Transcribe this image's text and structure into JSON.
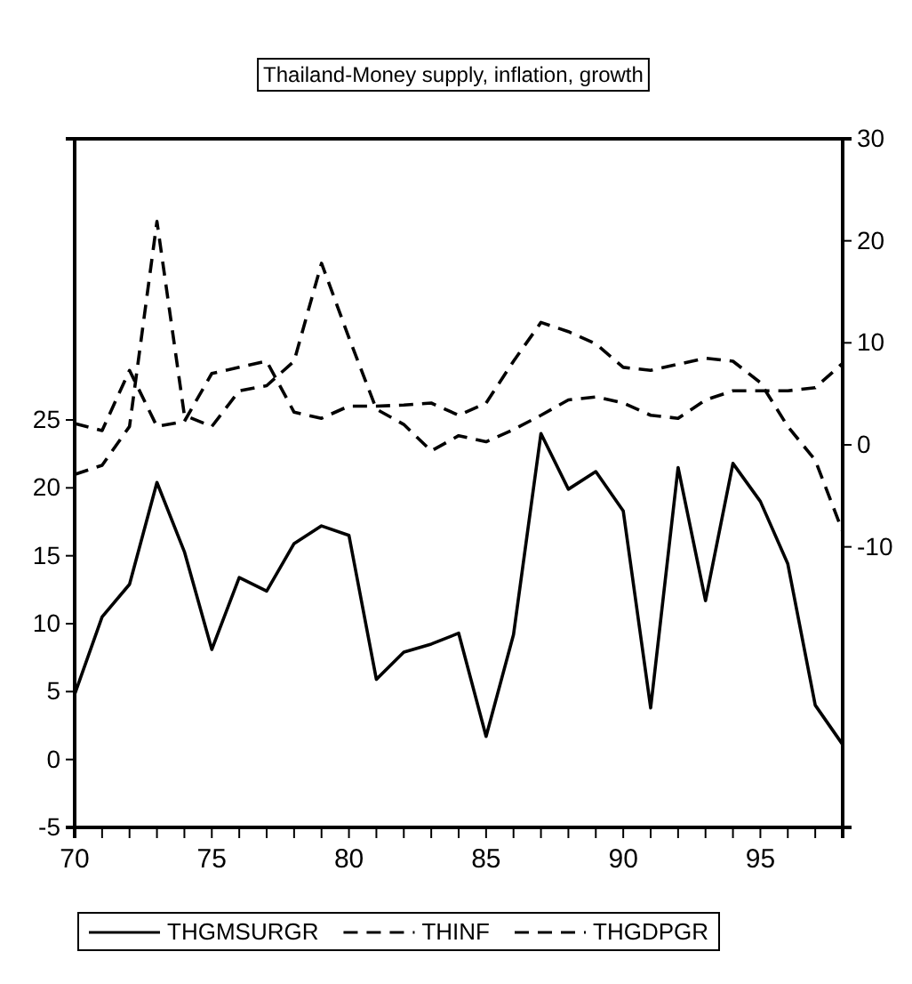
{
  "chart_data": {
    "type": "line",
    "title": "Thailand-Money supply, inflation, growth",
    "x": [
      70,
      71,
      72,
      73,
      74,
      75,
      76,
      77,
      78,
      79,
      80,
      81,
      82,
      83,
      84,
      85,
      86,
      87,
      88,
      89,
      90,
      91,
      92,
      93,
      94,
      95,
      96,
      97,
      98
    ],
    "series": [
      {
        "name": "THGMSURGR",
        "color": "#000000",
        "line_style": "solid",
        "values": [
          4.8,
          10.5,
          12.9,
          20.4,
          15.3,
          8.1,
          13.4,
          12.4,
          15.9,
          17.2,
          16.5,
          5.9,
          7.9,
          8.5,
          9.3,
          1.7,
          9.2,
          24.0,
          19.9,
          21.2,
          18.3,
          3.8,
          21.5,
          11.7,
          21.8,
          19.0,
          14.4,
          4.0,
          1.1
        ]
      },
      {
        "name": "THINF",
        "color": "#000000",
        "line_style": "dashed",
        "axis": "y2",
        "values": [
          -2.9,
          -2.0,
          1.8,
          21.9,
          2.9,
          1.8,
          5.3,
          5.8,
          8.2,
          17.8,
          10.5,
          3.5,
          2.0,
          -0.6,
          0.9,
          0.3,
          1.5,
          2.9,
          4.4,
          4.7,
          4.1,
          2.9,
          2.6,
          4.4,
          5.3,
          5.3,
          5.3,
          5.6,
          8.0
        ]
      },
      {
        "name": "THGDPGR",
        "color": "#000000",
        "line_style": "dashed",
        "axis": "y2",
        "values": [
          2.1,
          1.4,
          7.3,
          1.8,
          2.3,
          7.0,
          7.6,
          8.2,
          3.2,
          2.6,
          3.8,
          3.8,
          3.9,
          4.1,
          2.9,
          4.1,
          8.2,
          12.0,
          11.1,
          9.9,
          7.6,
          7.3,
          7.9,
          8.5,
          8.2,
          6.1,
          1.8,
          -1.5,
          -8.5
        ]
      }
    ],
    "xlim": [
      70,
      98
    ],
    "xticks": [
      70,
      {
        "value": 71,
        "label": null
      },
      {
        "value": 72,
        "label": null
      },
      {
        "value": 73,
        "label": null
      },
      {
        "value": 74,
        "label": null
      },
      75,
      {
        "value": 76,
        "label": null
      },
      {
        "value": 77,
        "label": null
      },
      {
        "value": 78,
        "label": null
      },
      {
        "value": 79,
        "label": null
      },
      80,
      {
        "value": 81,
        "label": null
      },
      {
        "value": 82,
        "label": null
      },
      {
        "value": 83,
        "label": null
      },
      {
        "value": 84,
        "label": null
      },
      85,
      {
        "value": 86,
        "label": null
      },
      {
        "value": 87,
        "label": null
      },
      {
        "value": 88,
        "label": null
      },
      {
        "value": 89,
        "label": null
      },
      90,
      {
        "value": 91,
        "label": null
      },
      {
        "value": 92,
        "label": null
      },
      {
        "value": 93,
        "label": null
      },
      {
        "value": 94,
        "label": null
      },
      95,
      {
        "value": 96,
        "label": null
      },
      {
        "value": 97,
        "label": null
      }
    ],
    "ylim": [
      -5,
      45.7
    ],
    "yticks": [
      -5,
      0,
      5,
      10,
      15,
      20,
      25
    ],
    "y2lim": [
      -37.5,
      30
    ],
    "y2ticks": [
      -10,
      0,
      10,
      20,
      30
    ],
    "grid": false,
    "legend": "bottom",
    "marker": "none"
  }
}
